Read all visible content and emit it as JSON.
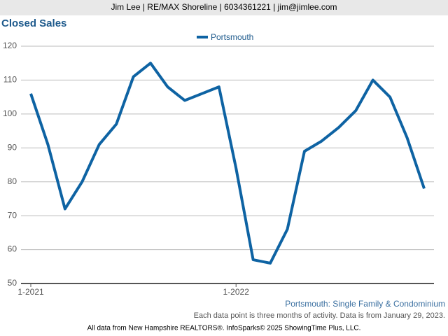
{
  "chart_data": {
    "type": "line",
    "header": "Jim Lee | RE/MAX Shoreline | 6034361221 | jim@jimlee.com",
    "title": "Closed Sales",
    "subtitle": "Portsmouth: Single Family & Condominium",
    "note": "Each data point is three months of activity. Data is from January 29, 2023.",
    "source": "All data from New Hampshire REALTORS®. InfoSparks© 2025 ShowingTime Plus, LLC.",
    "categories": [
      "1-2021",
      null,
      null,
      null,
      null,
      null,
      null,
      null,
      null,
      null,
      null,
      null,
      "1-2022",
      null,
      null,
      null,
      null,
      null,
      null,
      null,
      null,
      null,
      null,
      null
    ],
    "series": [
      {
        "name": "Portsmouth",
        "color": "#0e63a3",
        "values": [
          106,
          91,
          72,
          80,
          91,
          97,
          111,
          115,
          108,
          104,
          106,
          108,
          84,
          57,
          56,
          66,
          89,
          92,
          96,
          101,
          110,
          105,
          93,
          78
        ]
      }
    ],
    "ylim": [
      50,
      120
    ],
    "yticks": [
      50,
      60,
      70,
      80,
      90,
      100,
      110,
      120
    ],
    "grid": true,
    "legend": "top"
  }
}
